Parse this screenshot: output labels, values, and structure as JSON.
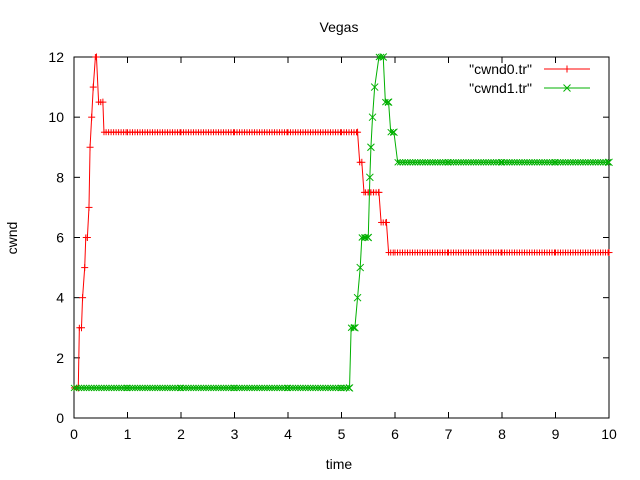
{
  "chart_data": {
    "type": "line",
    "title": "Vegas",
    "xlabel": "time",
    "ylabel": "cwnd",
    "xlim": [
      0,
      10
    ],
    "ylim": [
      0,
      12
    ],
    "xticks": [
      0,
      1,
      2,
      3,
      4,
      5,
      6,
      7,
      8,
      9,
      10
    ],
    "yticks": [
      0,
      2,
      4,
      6,
      8,
      10,
      12
    ],
    "grid": false,
    "legend_position": "top-right",
    "series": [
      {
        "name": "\"cwnd0.tr\"",
        "color": "#ff0000",
        "marker": "plus",
        "x": [
          0.0,
          0.08,
          0.1,
          0.14,
          0.16,
          0.2,
          0.22,
          0.25,
          0.28,
          0.3,
          0.33,
          0.36,
          0.4,
          0.42,
          0.46,
          0.5,
          0.54,
          0.56,
          0.6,
          1.0,
          2.0,
          3.0,
          4.0,
          5.0,
          5.3,
          5.34,
          5.38,
          5.42,
          5.45,
          5.5,
          5.55,
          5.6,
          5.7,
          5.74,
          5.78,
          5.84,
          5.88,
          5.92,
          6.0,
          7.0,
          8.0,
          9.0,
          10.0
        ],
        "y": [
          1,
          1,
          3,
          3,
          4,
          5,
          6,
          6,
          7,
          9,
          10,
          11,
          12,
          12,
          10.5,
          10.5,
          10.5,
          9.5,
          9.5,
          9.5,
          9.5,
          9.5,
          9.5,
          9.5,
          9.5,
          8.5,
          8.5,
          7.5,
          7.5,
          7.5,
          7.5,
          7.5,
          7.5,
          6.5,
          6.5,
          6.5,
          5.5,
          5.5,
          5.5,
          5.5,
          5.5,
          5.5,
          5.5
        ]
      },
      {
        "name": "\"cwnd1.tr\"",
        "color": "#00b000",
        "marker": "cross",
        "x": [
          0.0,
          1.0,
          2.0,
          3.0,
          4.0,
          5.0,
          5.15,
          5.18,
          5.25,
          5.3,
          5.35,
          5.38,
          5.45,
          5.5,
          5.53,
          5.55,
          5.58,
          5.62,
          5.7,
          5.74,
          5.78,
          5.82,
          5.88,
          5.92,
          5.98,
          6.05,
          7.0,
          8.0,
          9.0,
          10.0
        ],
        "y": [
          1,
          1,
          1,
          1,
          1,
          1,
          1,
          3,
          3,
          4,
          5,
          6,
          6,
          6,
          8,
          9,
          10,
          11,
          12,
          12,
          12,
          10.5,
          10.5,
          9.5,
          9.5,
          8.5,
          8.5,
          8.5,
          8.5,
          8.5
        ]
      }
    ]
  }
}
